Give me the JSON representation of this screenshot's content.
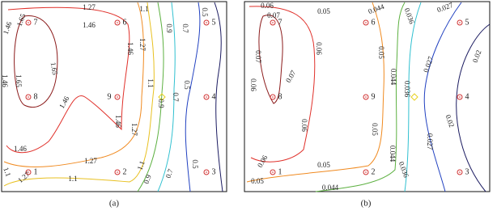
{
  "panels": [
    {
      "caption": "(a)",
      "points": [
        "7",
        "6",
        "5",
        "8",
        "9",
        "4",
        "1",
        "2",
        "3"
      ],
      "contour_labels": [
        "1.27",
        "1.1",
        "0.9",
        "0.7",
        "0.5",
        "1.46",
        "1.65",
        "1.46",
        "1.46",
        "1.27",
        "1.65",
        "1.46",
        "1.65",
        "1.46",
        "1.1",
        "0.9",
        "0.7",
        "0.5",
        "1.46",
        "1.27",
        "1.46",
        "1.27",
        "1.1",
        "0.9",
        "0.7",
        "0.5",
        "1.1",
        "1.27",
        "1.1"
      ]
    },
    {
      "caption": "(b)",
      "points": [
        "7",
        "6",
        "5",
        "8",
        "9",
        "4",
        "1",
        "2",
        "3"
      ],
      "contour_labels": [
        "0.06",
        "0.07",
        "0.05",
        "0.044",
        "0.036",
        "0.027",
        "0.06",
        "0.05",
        "0.07",
        "0.07",
        "0.06",
        "0.044",
        "0.036",
        "0.027",
        "0.02",
        "0.06",
        "0.05",
        "0.02",
        "0.027",
        "0.044",
        "0.036",
        "0.06",
        "0.05",
        "0.05",
        "0.044"
      ]
    }
  ]
}
